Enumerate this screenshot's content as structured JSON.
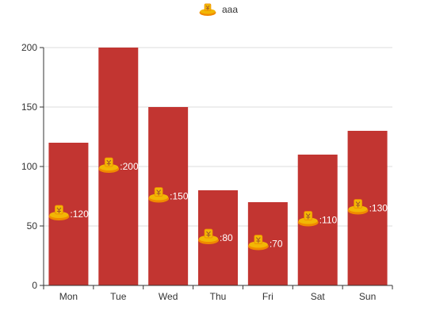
{
  "chart_data": {
    "type": "bar",
    "categories": [
      "Mon",
      "Tue",
      "Wed",
      "Thu",
      "Fri",
      "Sat",
      "Sun"
    ],
    "series": [
      {
        "name": "aaa",
        "values": [
          120,
          200,
          150,
          80,
          70,
          110,
          130
        ]
      }
    ],
    "ylim": [
      0,
      200
    ],
    "yticks": [
      0,
      50,
      100,
      150,
      200
    ],
    "grid": true,
    "legend": "top-center",
    "label_format": "{icon}:{value}",
    "colors": {
      "bar": "#c23531",
      "axis": "#333333",
      "grid": "#dddddd",
      "label": "#ffffff",
      "icon_gold": "#f2b705",
      "icon_orange": "#f08a00"
    },
    "icons": {
      "legend": "coin-pile-icon",
      "label": "coin-pile-icon"
    }
  }
}
